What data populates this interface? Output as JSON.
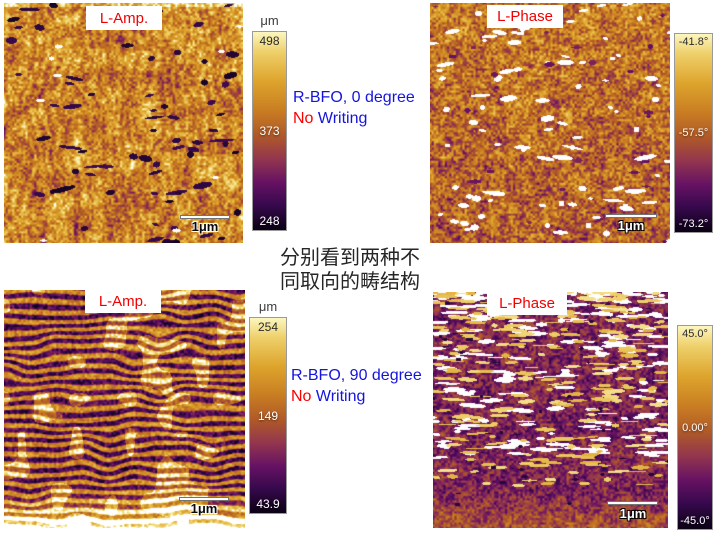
{
  "figure": {
    "background": "#ffffff"
  },
  "panels": [
    {
      "label": "L-Amp.",
      "scalebar": "1μm",
      "texture": "amp-vertical",
      "colorbar": {
        "unit": "μm",
        "ticks": [
          "498",
          "373",
          "248"
        ]
      }
    },
    {
      "label": "L-Phase",
      "scalebar": "1μm",
      "texture": "phase-speckle",
      "colorbar": {
        "unit": "",
        "ticks": [
          "-41.8°",
          "-57.5°",
          "-73.2°"
        ]
      }
    },
    {
      "label": "L-Amp.",
      "scalebar": "1μm",
      "texture": "amp-horizontal",
      "colorbar": {
        "unit": "μm",
        "ticks": [
          "254",
          "149",
          "43.9"
        ]
      }
    },
    {
      "label": "L-Phase",
      "scalebar": "1μm",
      "texture": "phase-streaks",
      "colorbar": {
        "unit": "",
        "ticks": [
          "45.0°",
          "0.00°",
          "-45.0°"
        ]
      }
    }
  ],
  "annotations": {
    "row1": {
      "line1": "R-BFO, 0 degree",
      "no": "No",
      "writing": " Writing"
    },
    "row2": {
      "line1": "R-BFO, 90 degree",
      "no": "No",
      "writing": " Writing"
    },
    "caption_zh_line1": "分别看到两种不",
    "caption_zh_line2": "同取向的畴结构"
  },
  "colors": {
    "label_red": "#f00000",
    "note_blue": "#1414dd",
    "note_red": "#fa0000",
    "caption_dark": "#262626",
    "colormap_top": "#fcf6c0",
    "colormap_mid": "#b05a28",
    "colormap_bottom": "#0b0114"
  }
}
